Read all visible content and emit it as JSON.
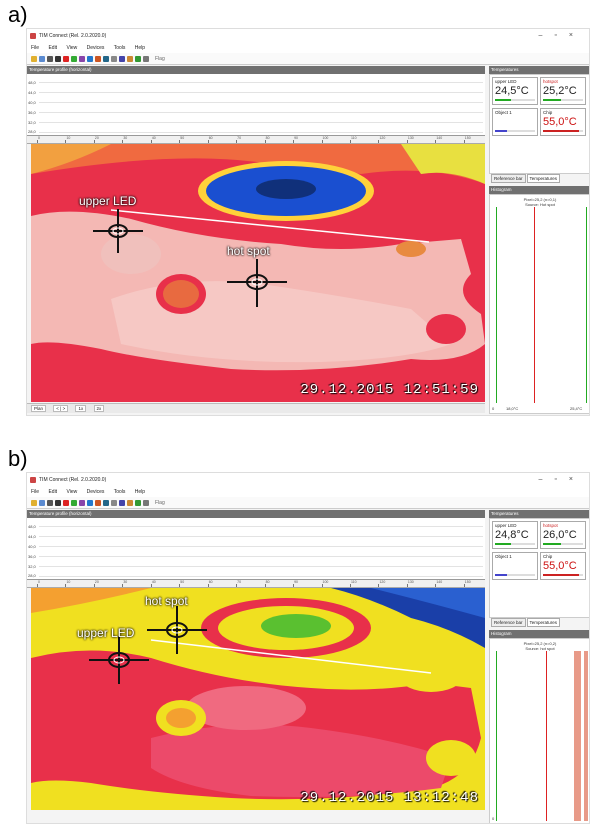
{
  "panels": [
    {
      "label": "a)",
      "window_title": "TIM Connect (Rel. 2.0.2020.0)",
      "menu": [
        "File",
        "Edit",
        "View",
        "Devices",
        "Tools",
        "Help"
      ],
      "toolbar_flag": "Flag",
      "profile_header": "Temperature profile (horizontal)",
      "profile_ticks": [
        "48,0",
        "44,0",
        "40,0",
        "36,0",
        "32,0",
        "28,0"
      ],
      "ruler_ticks": [
        "0",
        "10",
        "20",
        "30",
        "40",
        "50",
        "60",
        "70",
        "80",
        "90",
        "100",
        "110",
        "120",
        "130",
        "140",
        "150"
      ],
      "markers": [
        {
          "label": "upper LED"
        },
        {
          "label": "hot spot"
        }
      ],
      "timestamp": "29.12.2015 12:51:59",
      "bottom_buttons": [
        "Plan",
        "< | >",
        "1x",
        "2x"
      ],
      "temperatures_header": "Temperatures",
      "temp_boxes": [
        {
          "label": "upper LED",
          "value": "24,5°C",
          "color": "#222222",
          "label_color": "#222222"
        },
        {
          "label": "hotspot",
          "value": "25,2°C",
          "color": "#222222",
          "label_color": "#cc2222"
        },
        {
          "label": "Object 1",
          "value": "",
          "color": "#222222",
          "label_color": "#222222"
        },
        {
          "label": "Chip",
          "value": "55,0°C",
          "color": "#cc1111",
          "label_color": "#222222"
        }
      ],
      "tabs": [
        "Reference bar",
        "Temperatures"
      ],
      "histogram_header": "Histogram",
      "histogram_lines": [
        "Pixel=25,2 (n=0,1)",
        "Source: Hot spot"
      ],
      "histogram_axis": [
        "0",
        "18,0°C",
        "25,4°C"
      ],
      "colors": {
        "thermal_base": "#e8304a",
        "cold_spot": "#1a4fd0"
      }
    },
    {
      "label": "b)",
      "window_title": "TIM Connect (Rel. 2.0.2020.0)",
      "menu": [
        "File",
        "Edit",
        "View",
        "Devices",
        "Tools",
        "Help"
      ],
      "toolbar_flag": "Flag",
      "profile_header": "Temperature profile (horizontal)",
      "profile_ticks": [
        "48,0",
        "44,0",
        "40,0",
        "36,0",
        "32,0",
        "28,0"
      ],
      "ruler_ticks": [
        "0",
        "10",
        "20",
        "30",
        "40",
        "50",
        "60",
        "70",
        "80",
        "90",
        "100",
        "110",
        "120",
        "130",
        "140",
        "150"
      ],
      "markers": [
        {
          "label": "hot spot"
        },
        {
          "label": "upper LED"
        }
      ],
      "timestamp": "29.12.2015 13:12:48",
      "temperatures_header": "Temperatures",
      "temp_boxes": [
        {
          "label": "upper LED",
          "value": "24,8°C",
          "color": "#222222",
          "label_color": "#222222"
        },
        {
          "label": "hotspot",
          "value": "26,0°C",
          "color": "#222222",
          "label_color": "#cc2222"
        },
        {
          "label": "Object 1",
          "value": "",
          "color": "#222222",
          "label_color": "#222222"
        },
        {
          "label": "Chip",
          "value": "55,0°C",
          "color": "#cc1111",
          "label_color": "#222222"
        }
      ],
      "tabs": [
        "Reference bar",
        "Temperatures"
      ],
      "histogram_header": "Histogram",
      "histogram_lines": [
        "Pixel=25,2 (n=0,2)",
        "Source: hot spot"
      ],
      "histogram_axis": [
        "0"
      ],
      "colors": {
        "thermal_base": "#f0e020",
        "cold_spot": "#1a3fa8"
      }
    }
  ]
}
